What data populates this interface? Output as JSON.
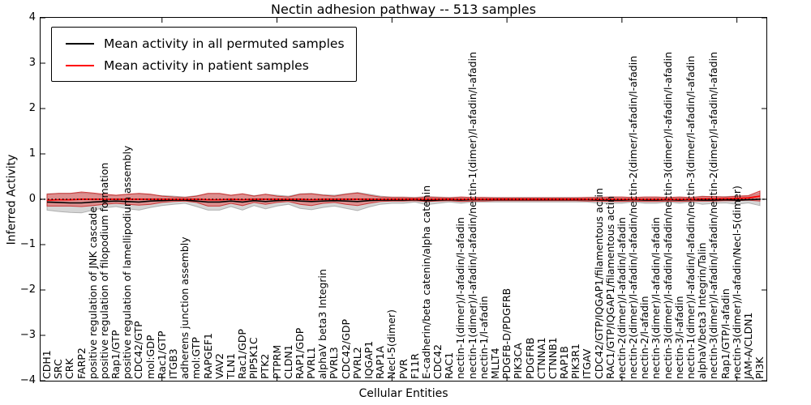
{
  "chart_data": {
    "type": "line",
    "title": "Nectin adhesion pathway -- 513 samples",
    "xlabel": "Cellular Entities",
    "ylabel": "Inferred Activity",
    "ylim": [
      -4,
      4
    ],
    "yticks": [
      4,
      3,
      2,
      1,
      0,
      -1,
      -2,
      -3,
      -4
    ],
    "ytick_labels": [
      "4",
      "3",
      "2",
      "1",
      "0",
      "−1",
      "−2",
      "−3",
      "−4"
    ],
    "right_yticks": [
      4,
      2,
      0,
      -2,
      -4
    ],
    "x_major_tick_indices": [
      10,
      20,
      30,
      40,
      50,
      60
    ],
    "grid": false,
    "legend_position": "upper left",
    "zero_line": 0,
    "colors": {
      "permuted_line": "#000000",
      "patient_line": "#ff0000",
      "permuted_band_fill": "rgba(150,150,150,0.40)",
      "permuted_band_edge": "rgba(130,130,130,0.55)",
      "patient_band_fill": "rgba(230,60,60,0.45)",
      "patient_band_edge": "rgba(200,35,35,0.85)"
    },
    "categories": [
      "CDH1",
      "SRC",
      "CRK",
      "FARP2",
      "positive regulation of JNK cascade",
      "positive regulation of filopodium formation",
      "Rap1/GTP",
      "positive regulation of lamellipodium assembly",
      "CDC42/GTP",
      "mol:GDP",
      "Rac1/GTP",
      "ITGB3",
      "adherens junction assembly",
      "mol:GTP",
      "RAPGEF1",
      "VAV2",
      "TLN1",
      "Rac1/GDP",
      "PIP5K1C",
      "PTK2",
      "PTPRM",
      "CLDN1",
      "RAP1/GDP",
      "PVRL1",
      "alphaV beta3 Integrin",
      "PVRL3",
      "CDC42/GDP",
      "PVRL2",
      "IQGAP1",
      "RAP1A",
      "Necl-5(dimer)",
      "PVR",
      "F11R",
      "E-cadherin/beta catenin/alpha catenin",
      "CDC42",
      "RAC1",
      "nectin-1(dimer)/l-afadin/l-afadin",
      "nectin-1(dimer)/l-afadin/l-afadin/nectin-1(dimer)/l-afadin/l-afadin",
      "nectin-1/l-afadin",
      "MLLT4",
      "PDGFB-D/PDGFRB",
      "PIK3CA",
      "PDGFRB",
      "CTNNA1",
      "CTNNB1",
      "RAP1B",
      "PIK3R1",
      "ITGAV",
      "CDC42/GTP/IQGAP1/filamentous actin",
      "RAC1/GTP/IQGAP1/filamentous actin",
      "nectin-2(dimer)/l-afadin/l-afadin",
      "nectin-2(dimer)/l-afadin/l-afadin/nectin-2(dimer/l-afadin/l-afadin",
      "nectin-2/l-afadin",
      "nectin-3(dimer)/l-afadin/l-afadin",
      "nectin-3(dimer)/l-afadin/l-afadin/nectin-3(dimer)/l-afadin/l-afadin",
      "nectin-3/l-afadin",
      "nectin-1(dimer)/l-afadin/l-afadin/nectin-3(dimer/l-afadin/l-afadin",
      "alphaV/beta3 Integrin/Talin",
      "nectin-3(dimer)/l-afadin/l-afadin/nectin-2(dimer)/l-afadin/l-afadin",
      "Rap1/GTP/l-afadin",
      "nectin-3(dimer)/l-afadin/Necl-5(dimer)",
      "JAM-A/CLDN1",
      "PI3K"
    ],
    "series": [
      {
        "name": "Mean activity in all permuted samples",
        "color": "#000000",
        "values": [
          -0.06,
          -0.07,
          -0.08,
          -0.08,
          -0.06,
          -0.05,
          -0.04,
          -0.05,
          -0.06,
          -0.04,
          -0.03,
          -0.02,
          -0.02,
          -0.04,
          -0.06,
          -0.06,
          -0.04,
          -0.06,
          -0.03,
          -0.05,
          -0.03,
          -0.02,
          -0.04,
          -0.05,
          -0.04,
          -0.03,
          -0.04,
          -0.05,
          -0.03,
          -0.02,
          -0.02,
          -0.02,
          -0.01,
          -0.03,
          -0.02,
          -0.01,
          -0.02,
          -0.01,
          -0.01,
          -0.01,
          -0.01,
          -0.01,
          -0.01,
          -0.01,
          -0.01,
          -0.01,
          -0.01,
          -0.01,
          -0.02,
          -0.02,
          -0.02,
          -0.01,
          -0.02,
          -0.02,
          -0.01,
          -0.02,
          -0.01,
          -0.02,
          -0.02,
          -0.01,
          -0.02,
          -0.01,
          0.0
        ],
        "band_std": [
          0.18,
          0.2,
          0.21,
          0.22,
          0.18,
          0.14,
          0.12,
          0.16,
          0.18,
          0.14,
          0.11,
          0.09,
          0.07,
          0.12,
          0.18,
          0.18,
          0.12,
          0.18,
          0.11,
          0.16,
          0.12,
          0.09,
          0.16,
          0.18,
          0.14,
          0.12,
          0.16,
          0.2,
          0.14,
          0.09,
          0.07,
          0.07,
          0.05,
          0.09,
          0.07,
          0.05,
          0.07,
          0.05,
          0.05,
          0.05,
          0.05,
          0.05,
          0.05,
          0.05,
          0.05,
          0.05,
          0.05,
          0.05,
          0.07,
          0.07,
          0.07,
          0.05,
          0.07,
          0.07,
          0.05,
          0.07,
          0.05,
          0.09,
          0.07,
          0.07,
          0.09,
          0.07,
          0.14
        ]
      },
      {
        "name": "Mean activity in patient samples",
        "color": "#ff0000",
        "values": [
          -0.02,
          -0.01,
          -0.01,
          0.0,
          0.0,
          0.0,
          0.0,
          0.0,
          0.0,
          0.0,
          0.0,
          0.0,
          0.0,
          0.0,
          -0.01,
          -0.01,
          0.0,
          -0.01,
          0.0,
          0.0,
          0.0,
          0.0,
          0.0,
          -0.01,
          0.0,
          0.0,
          0.0,
          0.0,
          0.0,
          0.0,
          0.0,
          0.0,
          0.0,
          0.0,
          0.0,
          0.0,
          0.0,
          0.0,
          0.0,
          0.0,
          0.0,
          0.0,
          0.0,
          0.0,
          0.0,
          0.0,
          0.0,
          0.0,
          0.0,
          0.0,
          0.0,
          0.0,
          0.0,
          0.0,
          0.0,
          0.0,
          0.0,
          0.01,
          0.01,
          0.01,
          0.02,
          0.03,
          0.07
        ],
        "band_std": [
          0.13,
          0.14,
          0.14,
          0.16,
          0.14,
          0.11,
          0.09,
          0.11,
          0.13,
          0.11,
          0.07,
          0.05,
          0.04,
          0.07,
          0.14,
          0.14,
          0.09,
          0.13,
          0.07,
          0.11,
          0.07,
          0.05,
          0.11,
          0.13,
          0.09,
          0.07,
          0.11,
          0.14,
          0.09,
          0.05,
          0.04,
          0.04,
          0.03,
          0.05,
          0.04,
          0.03,
          0.05,
          0.04,
          0.04,
          0.03,
          0.03,
          0.03,
          0.03,
          0.03,
          0.03,
          0.03,
          0.03,
          0.04,
          0.04,
          0.05,
          0.05,
          0.04,
          0.05,
          0.05,
          0.04,
          0.05,
          0.04,
          0.05,
          0.05,
          0.04,
          0.05,
          0.05,
          0.11
        ]
      }
    ]
  }
}
